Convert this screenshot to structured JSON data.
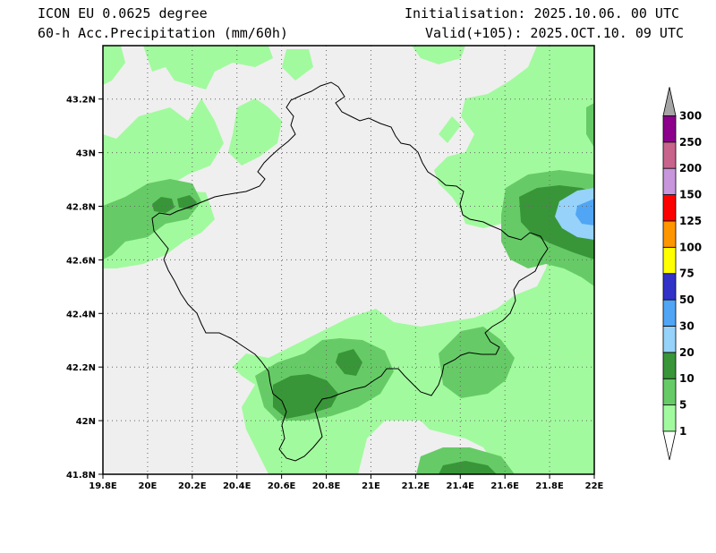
{
  "header": {
    "model": "ICON EU 0.0625 degree",
    "product": "60-h Acc.Precipitation (mm/60h)",
    "initialisation": "Initialisation: 2025.10.06. 00 UTC",
    "valid": "Valid(+105): 2025.OCT.10. 09 UTC"
  },
  "map": {
    "lon_range": [
      19.8,
      22.0
    ],
    "lat_range": [
      41.8,
      43.4
    ],
    "x_ticks": [
      {
        "v": 19.8,
        "label": "19.8E"
      },
      {
        "v": 20.0,
        "label": "20E"
      },
      {
        "v": 20.2,
        "label": "20.2E"
      },
      {
        "v": 20.4,
        "label": "20.4E"
      },
      {
        "v": 20.6,
        "label": "20.6E"
      },
      {
        "v": 20.8,
        "label": "20.8E"
      },
      {
        "v": 21.0,
        "label": "21E"
      },
      {
        "v": 21.2,
        "label": "21.2E"
      },
      {
        "v": 21.4,
        "label": "21.4E"
      },
      {
        "v": 21.6,
        "label": "21.6E"
      },
      {
        "v": 21.8,
        "label": "21.8E"
      },
      {
        "v": 22.0,
        "label": "22E"
      }
    ],
    "y_ticks": [
      {
        "v": 41.8,
        "label": "41.8N"
      },
      {
        "v": 42.0,
        "label": "42N"
      },
      {
        "v": 42.2,
        "label": "42.2N"
      },
      {
        "v": 42.4,
        "label": "42.4N"
      },
      {
        "v": 42.6,
        "label": "42.6N"
      },
      {
        "v": 42.8,
        "label": "42.8N"
      },
      {
        "v": 43.0,
        "label": "43N"
      },
      {
        "v": 43.2,
        "label": "43.2N"
      }
    ],
    "grid": "dotted",
    "colors": {
      "bg": "#efefef",
      "c1": "#a2fa9e",
      "c5": "#66cb66",
      "c10": "#389638",
      "c20": "#96d2fa",
      "c30": "#50a5f5"
    }
  },
  "colorbar": {
    "levels": [
      "1",
      "5",
      "10",
      "20",
      "30",
      "50",
      "75",
      "100",
      "125",
      "150",
      "200",
      "250",
      "300"
    ],
    "colors": [
      "#a2fa9e",
      "#66cb66",
      "#389638",
      "#96d2fa",
      "#50a5f5",
      "#3232c8",
      "#ffff00",
      "#ff9600",
      "#ff0000",
      "#c896dc",
      "#c8648c",
      "#8c008c",
      "#a5a5a5"
    ]
  }
}
